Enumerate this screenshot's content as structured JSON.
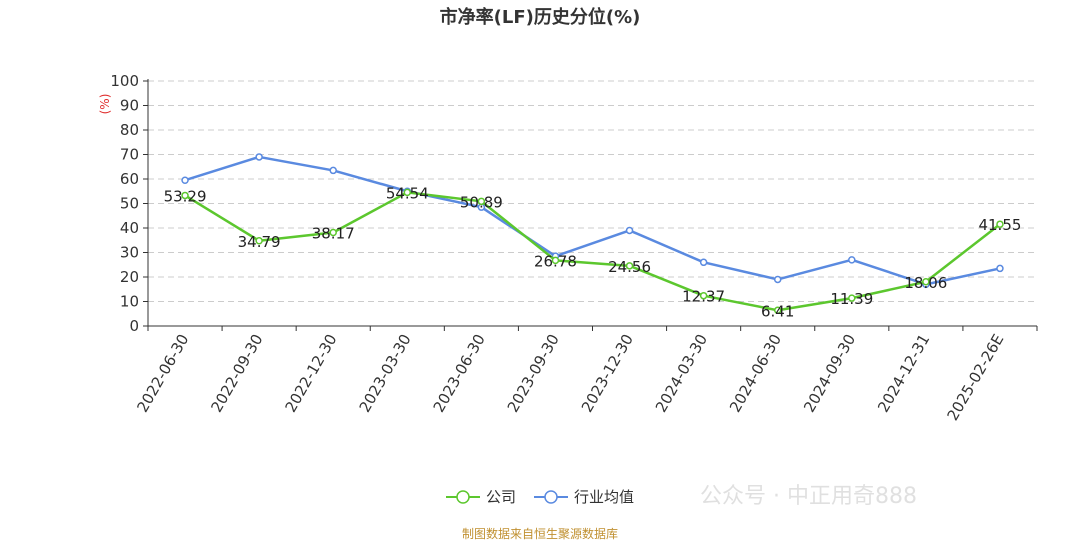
{
  "title": "市净率(LF)历史分位(%)",
  "source": "制图数据来自恒生聚源数据库",
  "watermark": "公众号 · 中正用奇888",
  "legend": {
    "company": "公司",
    "industry": "行业均值"
  },
  "colors": {
    "company": "#5cc72e",
    "industry": "#5a8ae0",
    "axis_unit": "#e03030"
  },
  "chart_data": {
    "type": "line",
    "title": "市净率(LF)历史分位(%)",
    "ylabel": "(%)",
    "ylim": [
      0,
      100
    ],
    "yticks": [
      0,
      10,
      20,
      30,
      40,
      50,
      60,
      70,
      80,
      90,
      100
    ],
    "categories": [
      "2022-06-30",
      "2022-09-30",
      "2022-12-30",
      "2023-03-30",
      "2023-06-30",
      "2023-09-30",
      "2023-12-30",
      "2024-03-30",
      "2024-06-30",
      "2024-09-30",
      "2024-12-31",
      "2025-02-26E"
    ],
    "series": [
      {
        "name": "公司",
        "values": [
          53.29,
          34.79,
          38.17,
          54.54,
          50.89,
          26.78,
          24.56,
          12.37,
          6.41,
          11.39,
          18.06,
          41.55
        ],
        "labels": [
          "53.29",
          "34.79",
          "38.17",
          "54.54",
          "50.89",
          "26.78",
          "24.56",
          "12.37",
          "6.41",
          "11.39",
          "18.06",
          "41.55"
        ]
      },
      {
        "name": "行业均值",
        "values": [
          59.5,
          69,
          63.5,
          55,
          48.5,
          28.5,
          39,
          26,
          19,
          27,
          17,
          23.5
        ]
      }
    ],
    "grid": true,
    "legend_position": "bottom"
  }
}
